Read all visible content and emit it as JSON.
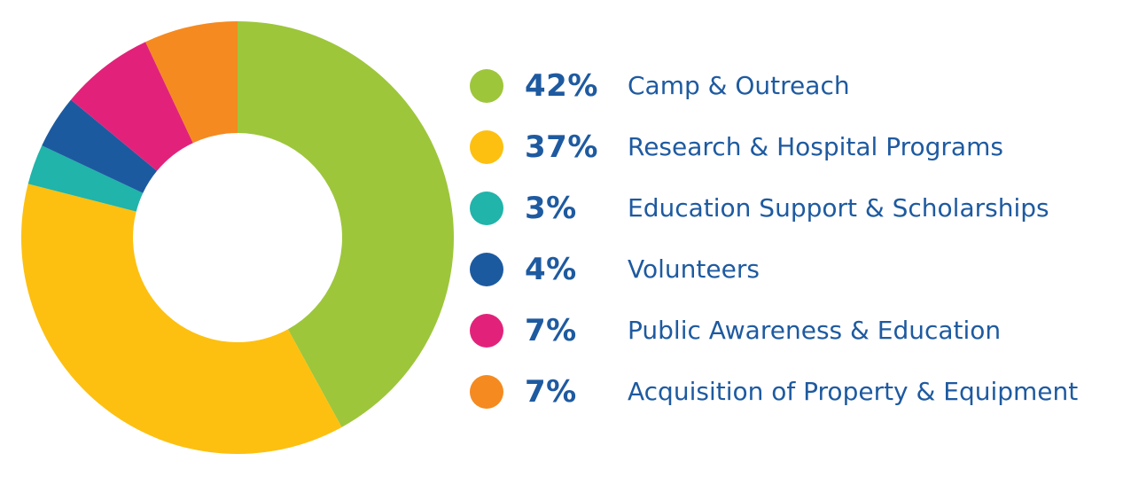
{
  "chart_data": {
    "type": "pie",
    "title": "",
    "donut": true,
    "start_angle_deg": 0,
    "direction": "clockwise",
    "legend_position": "right",
    "slices": [
      {
        "label": "Camp & Outreach",
        "value": 42,
        "display": "42%",
        "color": "#9dc63b"
      },
      {
        "label": "Research & Hospital Programs",
        "value": 37,
        "display": "37%",
        "color": "#fdc010"
      },
      {
        "label": "Education Support & Scholarships",
        "value": 3,
        "display": "3%",
        "color": "#20b4aa"
      },
      {
        "label": "Volunteers",
        "value": 4,
        "display": "4%",
        "color": "#1c5aa0"
      },
      {
        "label": "Public Awareness & Education",
        "value": 7,
        "display": "7%",
        "color": "#e2227a"
      },
      {
        "label": "Acquisition of Property & Equipment",
        "value": 7,
        "display": "7%",
        "color": "#f58a20"
      }
    ]
  }
}
